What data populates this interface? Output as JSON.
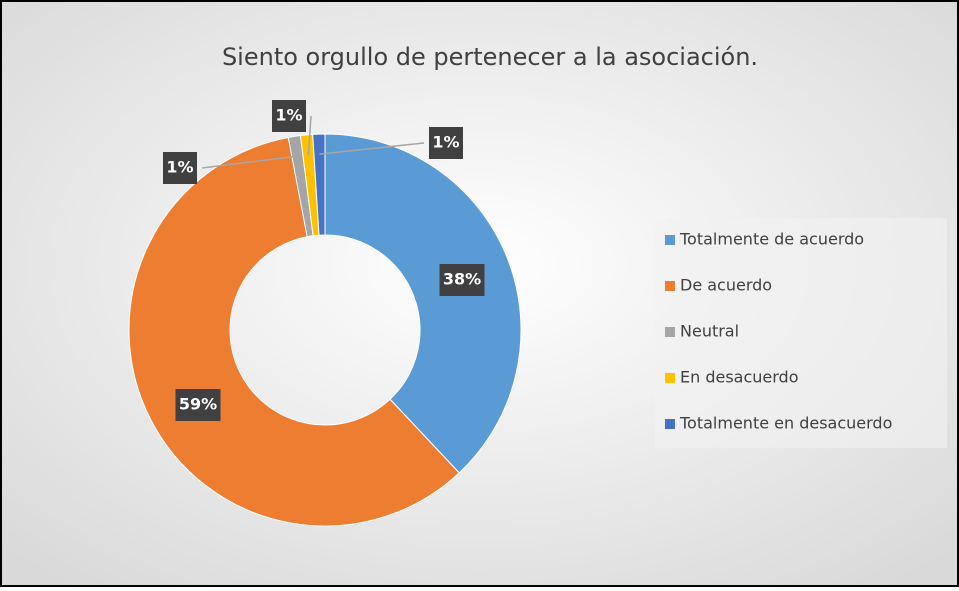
{
  "chart_data": {
    "type": "pie",
    "donut": true,
    "title": "Siento orgullo de pertenecer a la asociación.",
    "categories": [
      "Totalmente de acuerdo",
      "De acuerdo",
      "Neutral",
      "En desacuerdo",
      "Totalmente en desacuerdo"
    ],
    "values": [
      38,
      59,
      1,
      1,
      1
    ],
    "value_labels": [
      "38%",
      "59%",
      "1%",
      "1%",
      "1%"
    ],
    "colors": [
      "#5b9bd5",
      "#ed7d31",
      "#a5a5a5",
      "#ffc000",
      "#4472c4"
    ],
    "legend": "right"
  }
}
